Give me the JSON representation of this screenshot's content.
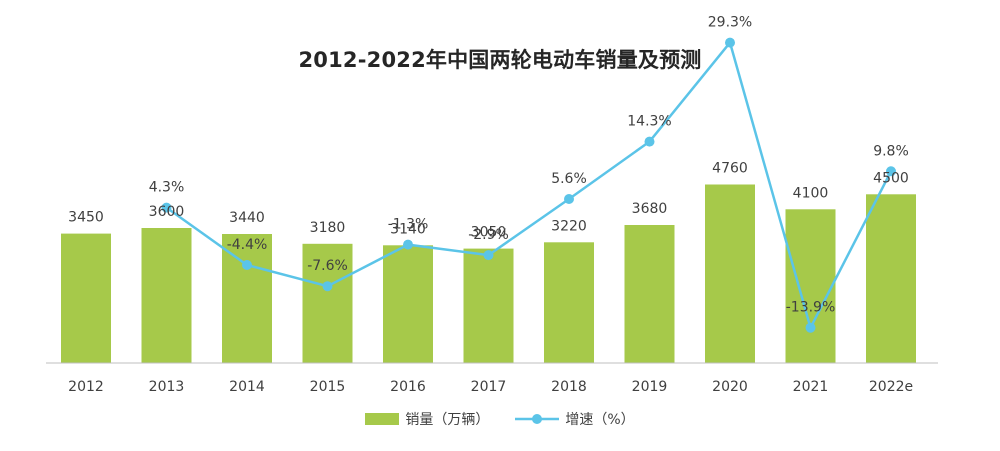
{
  "chart_data": {
    "type": "bar",
    "title": "2012-2022年中国两轮电动车销量及预测",
    "categories": [
      "2012",
      "2013",
      "2014",
      "2015",
      "2016",
      "2017",
      "2018",
      "2019",
      "2020",
      "2021",
      "2022e"
    ],
    "series": [
      {
        "name": "销量（万辆）",
        "type": "bar",
        "values": [
          3450,
          3600,
          3440,
          3180,
          3140,
          3050,
          3220,
          3680,
          4760,
          4100,
          4500
        ],
        "labels": [
          "3450",
          "3600",
          "3440",
          "3180",
          "3140",
          "3050",
          "3220",
          "3680",
          "4760",
          "4100",
          "4500"
        ],
        "color": "#a6c94a"
      },
      {
        "name": "增速（%）",
        "type": "line",
        "values": [
          null,
          4.3,
          -4.4,
          -7.6,
          -1.3,
          -2.9,
          5.6,
          14.3,
          29.3,
          -13.9,
          9.8
        ],
        "labels": [
          "",
          "4.3%",
          "-4.4%",
          "-7.6%",
          "-1.3%",
          "-2.9%",
          "5.6%",
          "14.3%",
          "29.3%",
          "-13.9%",
          "9.8%"
        ],
        "color": "#5bc4e8"
      }
    ],
    "bar_ylim": [
      0,
      5500
    ],
    "line_ylim": [
      -45,
      35
    ],
    "grid": false,
    "legend": "bottom-center"
  },
  "legend": {
    "bar_label": "销量（万辆）",
    "line_label": "增速（%）"
  }
}
